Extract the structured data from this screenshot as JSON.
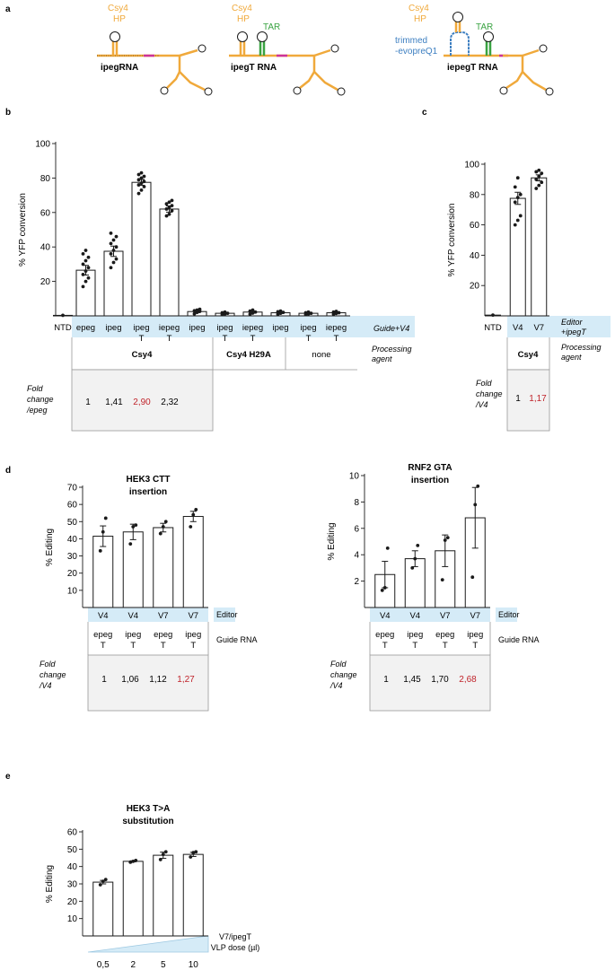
{
  "colors": {
    "csy4": "#f0a93b",
    "tar": "#3aa342",
    "evopreq": "#3d7fc1",
    "magenta": "#cc3399",
    "highlight": "#d5ebf7",
    "foldbox": "#f2f2f2",
    "red": "#c0242b",
    "black": "#1a1a1a"
  },
  "panel_a": {
    "letter": "a",
    "rna1": {
      "hp1": "Csy4",
      "hp2": "HP",
      "name": "ipegRNA"
    },
    "rna2": {
      "hp1": "Csy4",
      "hp2": "HP",
      "tar": "TAR",
      "name": "ipegT RNA"
    },
    "rna3": {
      "hp1": "Csy4",
      "hp2": "HP",
      "tar": "TAR",
      "trim1": "trimmed",
      "trim2": "-evopreQ1",
      "name": "iepegT RNA"
    }
  },
  "panel_b": {
    "letter": "b",
    "guide_row_label": "Guide+V4",
    "processing_label_1": "Processing",
    "processing_label_2": "agent",
    "group_labels": [
      "Csy4",
      "Csy4 H29A",
      "none"
    ],
    "fold_label": [
      "Fold",
      "change",
      "/epeg"
    ],
    "fold_values": [
      "1",
      "1,41",
      "2,90",
      "2,32"
    ]
  },
  "panel_c": {
    "letter": "c",
    "row_label_1": "Editor",
    "row_label_2": "+ipegT",
    "processing_label_1": "Processing",
    "processing_label_2": "agent",
    "group_label": "Csy4",
    "fold_label": [
      "Fold",
      "change",
      "/V4"
    ],
    "fold_values": [
      "1",
      "1,17"
    ]
  },
  "panel_d": {
    "letter": "d",
    "editor_label": "Editor",
    "guide_label": "Guide RNA",
    "fold_label": [
      "Fold",
      "change",
      "/V4"
    ],
    "left_fold_values": [
      "1",
      "1,06",
      "1,12",
      "1,27"
    ],
    "right_fold_values": [
      "1",
      "1,45",
      "1,70",
      "2,68"
    ]
  },
  "panel_e": {
    "letter": "e",
    "dose_label_1": "V7/ipegT",
    "dose_label_2": "VLP dose (µl)"
  },
  "chart_data": [
    {
      "id": "b",
      "type": "bar",
      "ylabel": "% YFP conversion",
      "ylim": [
        0,
        100
      ],
      "yticks": [
        20,
        40,
        60,
        80,
        100
      ],
      "categories": [
        "NTD",
        "epeg",
        "ipeg",
        "ipeg T",
        "iepeg T",
        "ipeg",
        "ipeg T",
        "iepeg T",
        "ipeg",
        "ipeg T",
        "iepeg T"
      ],
      "values": [
        0.3,
        26.5,
        37.5,
        77.5,
        62,
        2.5,
        1.5,
        2.2,
        1.8,
        1.5,
        1.8
      ],
      "errors": [
        0,
        2.8,
        3,
        1.7,
        1.8,
        0.6,
        0.4,
        0.6,
        0.4,
        0.3,
        0.4
      ],
      "points": [
        [
          0.3
        ],
        [
          17,
          20,
          22,
          24,
          26,
          28,
          30,
          32,
          34,
          36,
          38
        ],
        [
          28,
          31,
          33,
          36,
          38,
          40,
          42,
          44,
          46,
          48
        ],
        [
          71,
          73,
          75,
          76,
          77,
          78,
          79,
          80,
          81,
          82,
          83
        ],
        [
          58,
          59,
          61,
          62,
          63,
          64,
          65,
          66,
          67
        ],
        [
          1.2,
          2,
          2.6,
          3,
          3.4,
          3.8
        ],
        [
          0.8,
          1.2,
          1.5,
          1.8,
          2.2
        ],
        [
          1,
          1.6,
          2.2,
          2.8,
          3.4
        ],
        [
          1,
          1.5,
          2,
          2.4,
          2.8
        ],
        [
          0.8,
          1.2,
          1.5,
          1.8,
          2.2
        ],
        [
          1,
          1.4,
          1.8,
          2.2,
          2.6
        ]
      ]
    },
    {
      "id": "c",
      "type": "bar",
      "ylabel": "% YFP conversion",
      "ylim": [
        0,
        100
      ],
      "yticks": [
        20,
        40,
        60,
        80,
        100
      ],
      "categories": [
        "NTD",
        "V4",
        "V7"
      ],
      "values": [
        0.5,
        77.5,
        91
      ],
      "errors": [
        0,
        4,
        2
      ],
      "points": [
        [
          0.5
        ],
        [
          60,
          63,
          66,
          75,
          78,
          80,
          85,
          91
        ],
        [
          84,
          86,
          88,
          90,
          92,
          94,
          95,
          96
        ]
      ]
    },
    {
      "id": "d-left",
      "type": "bar",
      "title": [
        "HEK3 CTT",
        "insertion"
      ],
      "ylabel": "% Editing",
      "ylim": [
        0,
        70
      ],
      "yticks": [
        10,
        20,
        30,
        40,
        50,
        60,
        70
      ],
      "categories": [
        "V4 epeg T",
        "V4 ipeg T",
        "V7 epeg T",
        "V7 ipeg T"
      ],
      "editors": [
        "V4",
        "V4",
        "V7",
        "V7"
      ],
      "guides": [
        "epeg T",
        "ipeg T",
        "epeg T",
        "ipeg T"
      ],
      "values": [
        41.5,
        44,
        46.5,
        53
      ],
      "errors": [
        6,
        4.5,
        2.5,
        3
      ],
      "points": [
        [
          33,
          44,
          52
        ],
        [
          37,
          47,
          48
        ],
        [
          43,
          47,
          50
        ],
        [
          47,
          54,
          57
        ]
      ]
    },
    {
      "id": "d-right",
      "type": "bar",
      "title": [
        "RNF2 GTA",
        "insertion"
      ],
      "ylabel": "% Editing",
      "ylim": [
        0,
        10
      ],
      "yticks": [
        2,
        4,
        6,
        8,
        10
      ],
      "categories": [
        "V4 epeg T",
        "V4 ipeg T",
        "V7 epeg T",
        "V7 ipeg T"
      ],
      "editors": [
        "V4",
        "V4",
        "V7",
        "V7"
      ],
      "guides": [
        "epeg T",
        "ipeg T",
        "epeg T",
        "ipeg T"
      ],
      "values": [
        2.5,
        3.7,
        4.3,
        6.8
      ],
      "errors": [
        1,
        0.6,
        1.2,
        2.3
      ],
      "points": [
        [
          1.3,
          1.5,
          4.5
        ],
        [
          3,
          3.7,
          4.7
        ],
        [
          2.1,
          5.1,
          5.3
        ],
        [
          2.3,
          7.8,
          9.2
        ]
      ]
    },
    {
      "id": "e",
      "type": "bar",
      "title": [
        "HEK3 T>A",
        "substitution"
      ],
      "ylabel": "% Editing",
      "ylim": [
        0,
        60
      ],
      "yticks": [
        10,
        20,
        30,
        40,
        50,
        60
      ],
      "categories": [
        "0,5",
        "2",
        "5",
        "10"
      ],
      "values": [
        31,
        43,
        46.5,
        47
      ],
      "errors": [
        1,
        0.3,
        1.8,
        1.2
      ],
      "points": [
        [
          29.5,
          31.5,
          32.5
        ],
        [
          42.5,
          43,
          43.5
        ],
        [
          44,
          47,
          48.5
        ],
        [
          45.5,
          48,
          48.5
        ]
      ]
    }
  ]
}
